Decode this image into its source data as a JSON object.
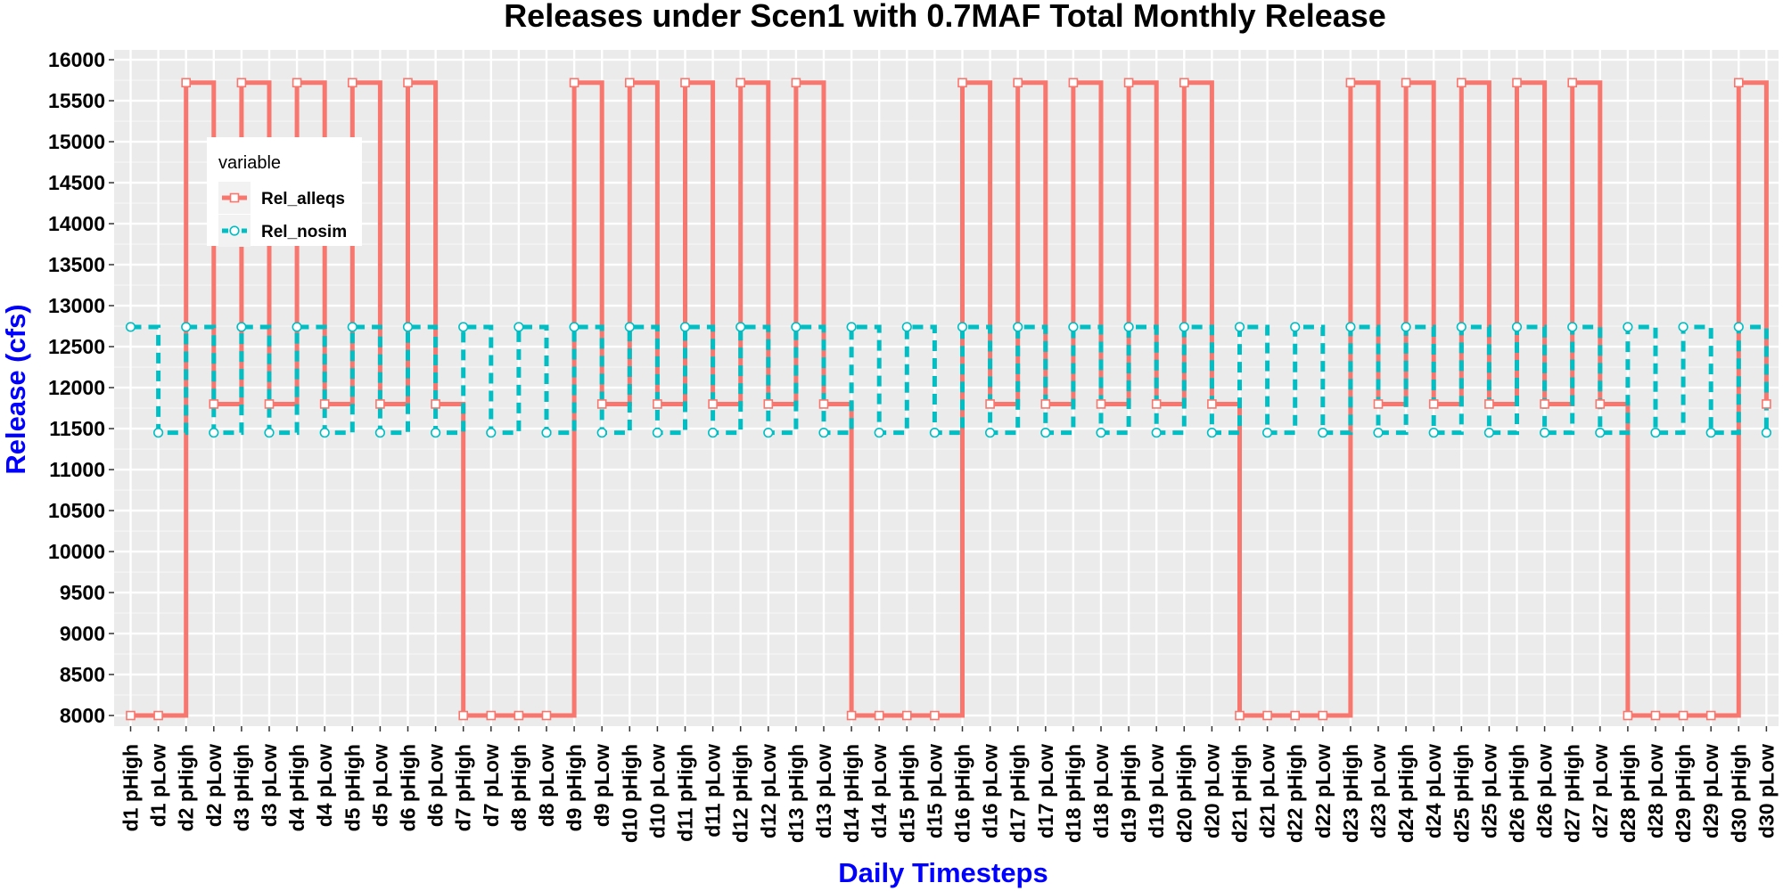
{
  "chart_data": {
    "type": "line",
    "step": true,
    "title": "Releases under Scen1 with 0.7MAF Total Monthly Release",
    "xlabel": "Daily Timesteps",
    "ylabel": "Release (cfs)",
    "ylim": [
      7870,
      16120
    ],
    "yticks": [
      8000,
      8500,
      9000,
      9500,
      10000,
      10500,
      11000,
      11500,
      12000,
      12500,
      13000,
      13500,
      14000,
      14500,
      15000,
      15500,
      16000
    ],
    "grid": true,
    "legend_position": "top-left",
    "legend_title": "variable",
    "categories": [
      "d1 pHigh",
      "d1 pLow",
      "d2 pHigh",
      "d2 pLow",
      "d3 pHigh",
      "d3 pLow",
      "d4 pHigh",
      "d4 pLow",
      "d5 pHigh",
      "d5 pLow",
      "d6 pHigh",
      "d6 pLow",
      "d7 pHigh",
      "d7 pLow",
      "d8 pHigh",
      "d8 pLow",
      "d9 pHigh",
      "d9 pLow",
      "d10 pHigh",
      "d10 pLow",
      "d11 pHigh",
      "d11 pLow",
      "d12 pHigh",
      "d12 pLow",
      "d13 pHigh",
      "d13 pLow",
      "d14 pHigh",
      "d14 pLow",
      "d15 pHigh",
      "d15 pLow",
      "d16 pHigh",
      "d16 pLow",
      "d17 pHigh",
      "d17 pLow",
      "d18 pHigh",
      "d18 pLow",
      "d19 pHigh",
      "d19 pLow",
      "d20 pHigh",
      "d20 pLow",
      "d21 pHigh",
      "d21 pLow",
      "d22 pHigh",
      "d22 pLow",
      "d23 pHigh",
      "d23 pLow",
      "d24 pHigh",
      "d24 pLow",
      "d25 pHigh",
      "d25 pLow",
      "d26 pHigh",
      "d26 pLow",
      "d27 pHigh",
      "d27 pLow",
      "d28 pHigh",
      "d28 pLow",
      "d29 pHigh",
      "d29 pLow",
      "d30 pHigh",
      "d30 pLow"
    ],
    "series": [
      {
        "name": "Rel_alleqs",
        "color": "#f8766d",
        "dash": "solid",
        "marker": "square",
        "values": [
          8000,
          8000,
          15720,
          11800,
          15720,
          11800,
          15720,
          11800,
          15720,
          11800,
          15720,
          11800,
          8000,
          8000,
          8000,
          8000,
          15720,
          11800,
          15720,
          11800,
          15720,
          11800,
          15720,
          11800,
          15720,
          11800,
          8000,
          8000,
          8000,
          8000,
          15720,
          11800,
          15720,
          11800,
          15720,
          11800,
          15720,
          11800,
          15720,
          11800,
          8000,
          8000,
          8000,
          8000,
          15720,
          11800,
          15720,
          11800,
          15720,
          11800,
          15720,
          11800,
          15720,
          11800,
          8000,
          8000,
          8000,
          8000,
          15720,
          11800
        ]
      },
      {
        "name": "Rel_nosim",
        "color": "#00bfc4",
        "dash": "dashed",
        "marker": "circle",
        "values": [
          12740,
          11450,
          12740,
          11450,
          12740,
          11450,
          12740,
          11450,
          12740,
          11450,
          12740,
          11450,
          12740,
          11450,
          12740,
          11450,
          12740,
          11450,
          12740,
          11450,
          12740,
          11450,
          12740,
          11450,
          12740,
          11450,
          12740,
          11450,
          12740,
          11450,
          12740,
          11450,
          12740,
          11450,
          12740,
          11450,
          12740,
          11450,
          12740,
          11450,
          12740,
          11450,
          12740,
          11450,
          12740,
          11450,
          12740,
          11450,
          12740,
          11450,
          12740,
          11450,
          12740,
          11450,
          12740,
          11450,
          12740,
          11450,
          12740,
          11450
        ]
      }
    ]
  }
}
